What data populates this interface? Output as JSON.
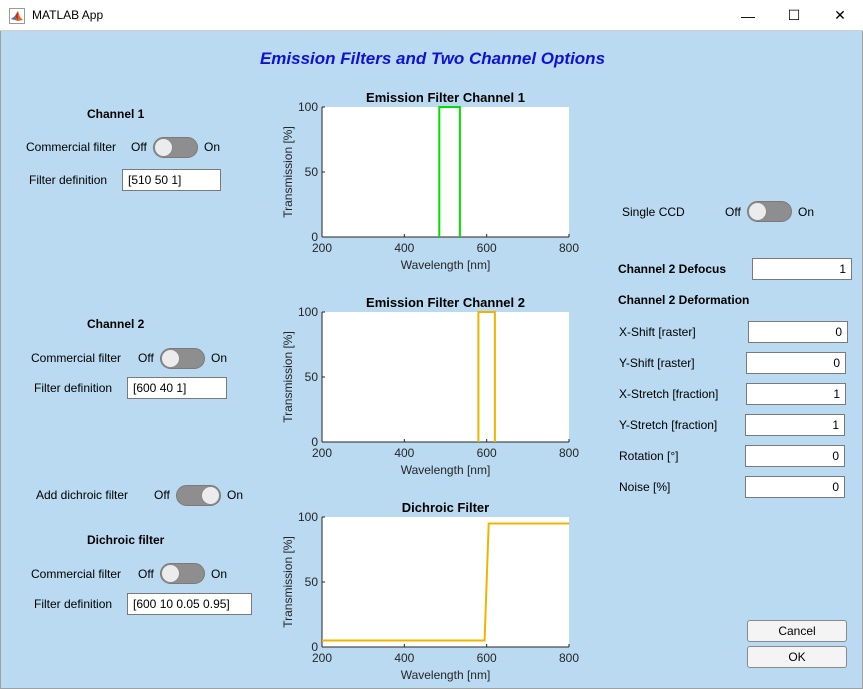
{
  "window": {
    "title": "MATLAB App",
    "minimize_glyph": "—",
    "maximize_glyph": "☐",
    "close_glyph": "✕"
  },
  "heading": "Emission Filters and Two Channel Options",
  "channel1": {
    "title": "Channel 1",
    "commercial_label": "Commercial filter",
    "switch_off": "Off",
    "switch_on": "On",
    "switch_state": "Off",
    "filter_def_label": "Filter definition",
    "filter_def_value": "[510 50 1]"
  },
  "channel2": {
    "title": "Channel 2",
    "commercial_label": "Commercial filter",
    "switch_off": "Off",
    "switch_on": "On",
    "switch_state": "Off",
    "filter_def_label": "Filter definition",
    "filter_def_value": "[600 40 1]"
  },
  "dichroic_toggle": {
    "label": "Add dichroic filter",
    "switch_off": "Off",
    "switch_on": "On",
    "switch_state": "On"
  },
  "dichroic": {
    "title": "Dichroic filter",
    "commercial_label": "Commercial filter",
    "switch_off": "Off",
    "switch_on": "On",
    "switch_state": "Off",
    "filter_def_label": "Filter definition",
    "filter_def_value": "[600 10 0.05 0.95]"
  },
  "single_ccd": {
    "label": "Single CCD",
    "switch_off": "Off",
    "switch_on": "On",
    "switch_state": "Off"
  },
  "defocus": {
    "label": "Channel 2 Defocus",
    "value": "1"
  },
  "deformation": {
    "title": "Channel 2 Deformation",
    "rows": [
      {
        "label": "X-Shift [raster]",
        "value": "0"
      },
      {
        "label": "Y-Shift [raster]",
        "value": "0"
      },
      {
        "label": "X-Stretch [fraction]",
        "value": "1"
      },
      {
        "label": "Y-Stretch [fraction]",
        "value": "1"
      },
      {
        "label": "Rotation [°]",
        "value": "0"
      },
      {
        "label": "Noise [%]",
        "value": "0"
      }
    ]
  },
  "buttons": {
    "cancel": "Cancel",
    "ok": "OK"
  },
  "chart_data": [
    {
      "type": "line",
      "title": "Emission Filter Channel 1",
      "xlabel": "Wavelength [nm]",
      "ylabel": "Transmission [%]",
      "xlim": [
        200,
        800
      ],
      "ylim": [
        0,
        100
      ],
      "xticks": [
        "200",
        "400",
        "600",
        "800"
      ],
      "yticks": [
        "0",
        "50",
        "100"
      ],
      "color": "#00e000",
      "x": [
        485,
        485,
        535,
        535
      ],
      "y": [
        0,
        100,
        100,
        0
      ]
    },
    {
      "type": "line",
      "title": "Emission Filter Channel 2",
      "xlabel": "Wavelength [nm]",
      "ylabel": "Transmission [%]",
      "xlim": [
        200,
        800
      ],
      "ylim": [
        0,
        100
      ],
      "xticks": [
        "200",
        "400",
        "600",
        "800"
      ],
      "yticks": [
        "0",
        "50",
        "100"
      ],
      "color": "#f0b400",
      "x": [
        580,
        580,
        620,
        620
      ],
      "y": [
        0,
        100,
        100,
        0
      ]
    },
    {
      "type": "line",
      "title": "Dichroic Filter",
      "xlabel": "Wavelength [nm]",
      "ylabel": "Transmission [%]",
      "xlim": [
        200,
        800
      ],
      "ylim": [
        0,
        100
      ],
      "xticks": [
        "200",
        "400",
        "600",
        "800"
      ],
      "yticks": [
        "0",
        "50",
        "100"
      ],
      "color": "#f0b400",
      "x": [
        200,
        595,
        605,
        800
      ],
      "y": [
        5,
        5,
        95,
        95
      ]
    }
  ]
}
